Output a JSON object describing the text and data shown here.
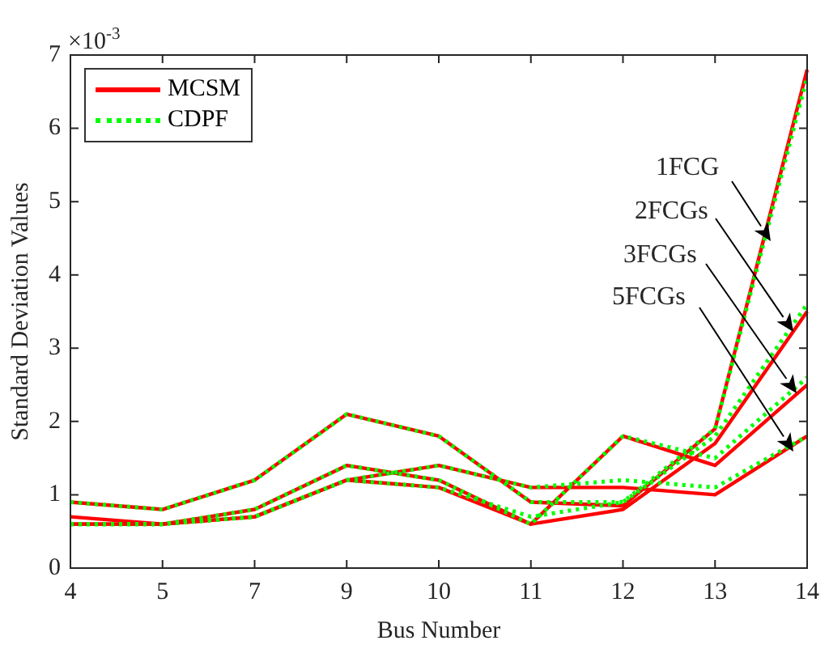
{
  "chart_data": {
    "type": "line",
    "xlabel": "Bus Number",
    "ylabel": "Standard Deviation Values",
    "categories": [
      "4",
      "5",
      "7",
      "9",
      "10",
      "11",
      "12",
      "13",
      "14"
    ],
    "ylim": [
      0,
      7
    ],
    "yticks": [
      0,
      1,
      2,
      3,
      4,
      5,
      6,
      7
    ],
    "grid": false,
    "legend": "top left",
    "marker": "none",
    "series": [
      {
        "name": "MCSM",
        "color": "#ff0000",
        "line_style": "solid",
        "values": [
          0.9,
          0.8,
          1.2,
          2.1,
          1.8,
          0.9,
          0.85,
          1.9,
          6.8
        ]
      },
      {
        "color": "#ff0000",
        "line_style": "solid",
        "values": [
          0.7,
          0.6,
          0.7,
          1.2,
          1.1,
          0.6,
          0.8,
          1.7,
          3.5
        ]
      },
      {
        "color": "#ff0000",
        "line_style": "solid",
        "values": [
          0.6,
          0.6,
          0.8,
          1.4,
          1.2,
          0.6,
          1.8,
          1.4,
          2.5
        ]
      },
      {
        "color": "#ff0000",
        "line_style": "solid",
        "values": [
          0.6,
          0.6,
          0.7,
          1.2,
          1.4,
          1.1,
          1.1,
          1.0,
          1.8
        ]
      },
      {
        "name": "CDPF",
        "color": "#00ff00",
        "line_style": "dotted",
        "values": [
          0.9,
          0.8,
          1.2,
          2.1,
          1.8,
          0.9,
          0.9,
          1.9,
          6.7
        ]
      },
      {
        "color": "#00ff00",
        "line_style": "dotted",
        "values": [
          0.6,
          0.6,
          0.7,
          1.2,
          1.1,
          0.7,
          0.9,
          1.8,
          3.6
        ]
      },
      {
        "color": "#00ff00",
        "line_style": "dotted",
        "values": [
          0.6,
          0.6,
          0.8,
          1.4,
          1.2,
          0.6,
          1.8,
          1.5,
          2.6
        ]
      },
      {
        "color": "#00ff00",
        "line_style": "dotted",
        "values": [
          0.6,
          0.6,
          0.7,
          1.2,
          1.4,
          1.1,
          1.2,
          1.1,
          1.8
        ]
      }
    ],
    "annotations": [
      "×10$^{-3}$",
      "1FCG",
      "2FCGs",
      "3FCGs",
      "5FCGs"
    ]
  }
}
